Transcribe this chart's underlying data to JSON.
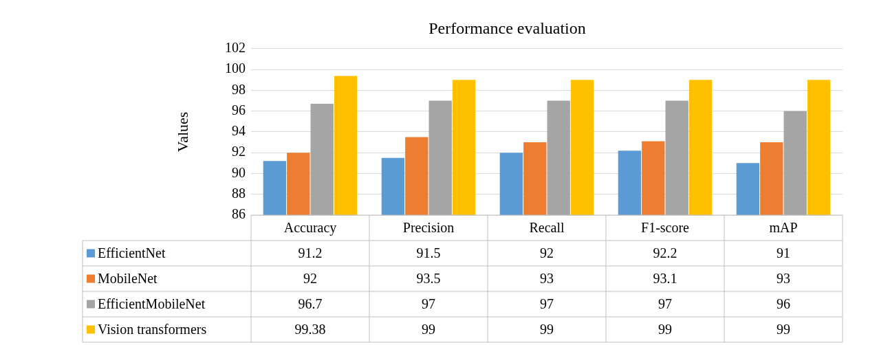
{
  "chart_data": {
    "type": "bar",
    "title": "Performance evaluation",
    "ylabel": "Values",
    "categories": [
      "Accuracy",
      "Precision",
      "Recall",
      "F1-score",
      "mAP"
    ],
    "series": [
      {
        "name": "EfficientNet",
        "color": "#5b9bd5",
        "values": [
          91.2,
          91.5,
          92,
          92.2,
          91
        ]
      },
      {
        "name": "MobileNet",
        "color": "#ed7d31",
        "values": [
          92,
          93.5,
          93,
          93.1,
          93
        ]
      },
      {
        "name": "EfficientMobileNet",
        "color": "#a5a5a5",
        "values": [
          96.7,
          97,
          97,
          97,
          96
        ]
      },
      {
        "name": "Vision transformers",
        "color": "#ffc000",
        "values": [
          99.38,
          99,
          99,
          99,
          99
        ]
      }
    ],
    "ylim": [
      86,
      102
    ],
    "yticks": [
      86,
      88,
      90,
      92,
      94,
      96,
      98,
      100,
      102
    ],
    "grid": "y",
    "legend": "bottom",
    "data_labels": true
  }
}
